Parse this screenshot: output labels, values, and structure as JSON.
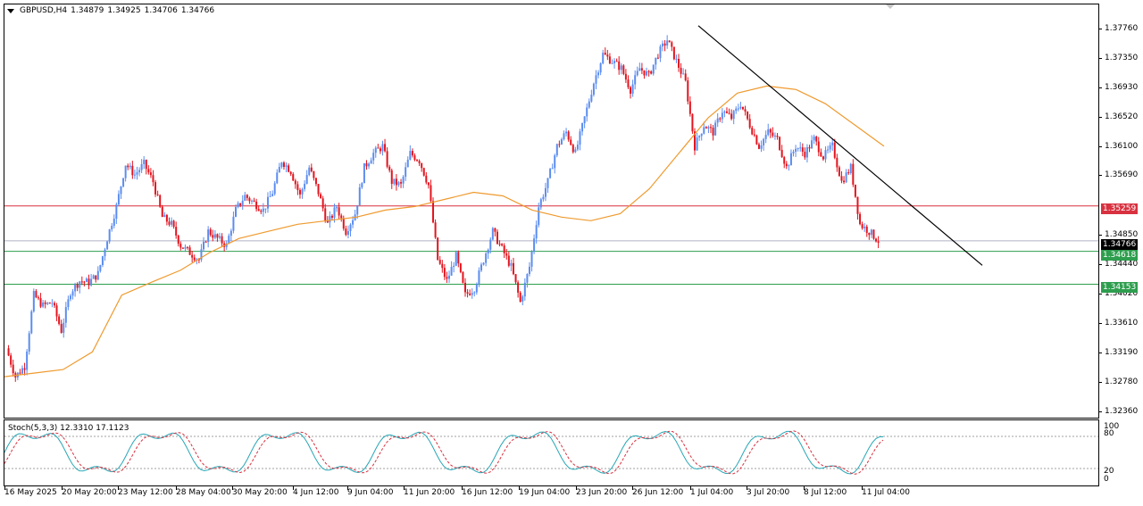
{
  "header": {
    "symbol": "GBPUSD,H4",
    "open": "1.34879",
    "high": "1.34925",
    "low": "1.34706",
    "close": "1.34766"
  },
  "price_axis": {
    "ticks": [
      "1.37760",
      "1.37350",
      "1.36930",
      "1.36520",
      "1.36100",
      "1.35690",
      "1.34850",
      "1.34440",
      "1.34020",
      "1.33610",
      "1.33190",
      "1.32780",
      "1.32360"
    ]
  },
  "price_labels": {
    "resistance": "1.35259",
    "current": "1.34766",
    "support1": "1.34618",
    "support2": "1.34153"
  },
  "colors": {
    "bull": "#5b8def",
    "bear": "#e3141e",
    "ma": "#ef9a2e",
    "trendline": "#000000",
    "resistance": "#d8313f",
    "support": "#2e9e4e",
    "current_line": "#b0b0c8",
    "stoch_main": "#26a6b5",
    "stoch_signal": "#d8313f"
  },
  "stoch": {
    "title": "Stoch(5,3,3) 12.3310 17.1123",
    "level_100": "100",
    "level_80": "80",
    "level_20": "20",
    "level_0": "0"
  },
  "time_axis": {
    "labels": [
      "16 May 2025",
      "20 May 20:00",
      "23 May 12:00",
      "28 May 04:00",
      "30 May 20:00",
      "4 Jun 12:00",
      "9 Jun 04:00",
      "11 Jun 20:00",
      "16 Jun 12:00",
      "19 Jun 04:00",
      "23 Jun 20:00",
      "26 Jun 12:00",
      "1 Jul 04:00",
      "3 Jul 20:00",
      "8 Jul 12:00",
      "11 Jul 04:00"
    ]
  },
  "chart_data": {
    "type": "candlestick",
    "symbol": "GBPUSD",
    "timeframe": "H4",
    "ylim": [
      1.3236,
      1.3818
    ],
    "horizontal_levels": [
      1.35259,
      1.34766,
      1.34618,
      1.34153
    ],
    "price_path": [
      [
        0,
        1.3325
      ],
      [
        4,
        1.3285
      ],
      [
        8,
        1.33
      ],
      [
        12,
        1.34
      ],
      [
        16,
        1.3385
      ],
      [
        20,
        1.339
      ],
      [
        24,
        1.335
      ],
      [
        28,
        1.3405
      ],
      [
        32,
        1.342
      ],
      [
        36,
        1.3418
      ],
      [
        40,
        1.343
      ],
      [
        44,
        1.348
      ],
      [
        48,
        1.3525
      ],
      [
        52,
        1.3585
      ],
      [
        56,
        1.357
      ],
      [
        60,
        1.3585
      ],
      [
        64,
        1.356
      ],
      [
        68,
        1.351
      ],
      [
        72,
        1.35
      ],
      [
        76,
        1.347
      ],
      [
        80,
        1.346
      ],
      [
        84,
        1.345
      ],
      [
        88,
        1.349
      ],
      [
        92,
        1.348
      ],
      [
        96,
        1.347
      ],
      [
        100,
        1.352
      ],
      [
        104,
        1.354
      ],
      [
        108,
        1.353
      ],
      [
        112,
        1.352
      ],
      [
        116,
        1.3545
      ],
      [
        120,
        1.359
      ],
      [
        124,
        1.3575
      ],
      [
        128,
        1.354
      ],
      [
        132,
        1.358
      ],
      [
        136,
        1.3545
      ],
      [
        140,
        1.35
      ],
      [
        144,
        1.3525
      ],
      [
        148,
        1.349
      ],
      [
        152,
        1.3515
      ],
      [
        156,
        1.358
      ],
      [
        160,
        1.36
      ],
      [
        164,
        1.361
      ],
      [
        168,
        1.356
      ],
      [
        172,
        1.3555
      ],
      [
        176,
        1.36
      ],
      [
        180,
        1.359
      ],
      [
        184,
        1.3555
      ],
      [
        188,
        1.345
      ],
      [
        192,
        1.342
      ],
      [
        196,
        1.3455
      ],
      [
        200,
        1.34
      ],
      [
        204,
        1.341
      ],
      [
        208,
        1.345
      ],
      [
        212,
        1.349
      ],
      [
        216,
        1.3465
      ],
      [
        220,
        1.344
      ],
      [
        224,
        1.339
      ],
      [
        228,
        1.344
      ],
      [
        232,
        1.3525
      ],
      [
        236,
        1.356
      ],
      [
        240,
        1.361
      ],
      [
        244,
        1.363
      ],
      [
        248,
        1.36
      ],
      [
        252,
        1.365
      ],
      [
        256,
        1.37
      ],
      [
        260,
        1.374
      ],
      [
        264,
        1.373
      ],
      [
        268,
        1.372
      ],
      [
        272,
        1.369
      ],
      [
        276,
        1.372
      ],
      [
        280,
        1.371
      ],
      [
        284,
        1.374
      ],
      [
        288,
        1.376
      ],
      [
        292,
        1.373
      ],
      [
        296,
        1.37
      ],
      [
        300,
        1.361
      ],
      [
        304,
        1.364
      ],
      [
        308,
        1.363
      ],
      [
        312,
        1.366
      ],
      [
        316,
        1.365
      ],
      [
        320,
        1.367
      ],
      [
        324,
        1.364
      ],
      [
        328,
        1.361
      ],
      [
        332,
        1.363
      ],
      [
        336,
        1.362
      ],
      [
        340,
        1.358
      ],
      [
        344,
        1.361
      ],
      [
        348,
        1.36
      ],
      [
        352,
        1.362
      ],
      [
        356,
        1.3595
      ],
      [
        360,
        1.361
      ],
      [
        364,
        1.356
      ],
      [
        368,
        1.358
      ],
      [
        372,
        1.35
      ],
      [
        376,
        1.349
      ],
      [
        380,
        1.34766
      ]
    ],
    "moving_average": [
      [
        1.3285,
        1.329,
        1.3295,
        1.332,
        1.34,
        1.3418,
        1.3435,
        1.346,
        1.348,
        1.349,
        1.35,
        1.3505,
        1.351,
        1.352,
        1.3525,
        1.3535,
        1.3545,
        1.354,
        1.352,
        1.351,
        1.3505,
        1.3515,
        1.355,
        1.36,
        1.365,
        1.3685,
        1.3695,
        1.369,
        1.367,
        1.364,
        1.361
      ]
    ],
    "trendline": [
      [
        1.378
      ],
      [
        1.346
      ]
    ],
    "stochastic": {
      "k": 12.331,
      "d": 17.1123,
      "levels": [
        20,
        80
      ]
    }
  }
}
